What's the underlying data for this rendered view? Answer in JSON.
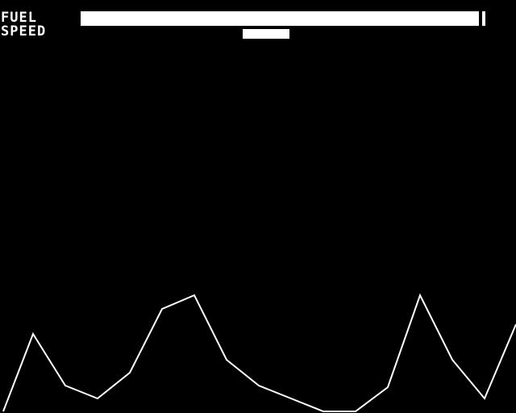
{
  "hud": {
    "fuel_label": "FUEL",
    "speed_label": "SPEED",
    "fuel_level": 0.98,
    "speed_level": 0.46
  },
  "colors": {
    "background": "#000000",
    "foreground": "#ffffff"
  }
}
